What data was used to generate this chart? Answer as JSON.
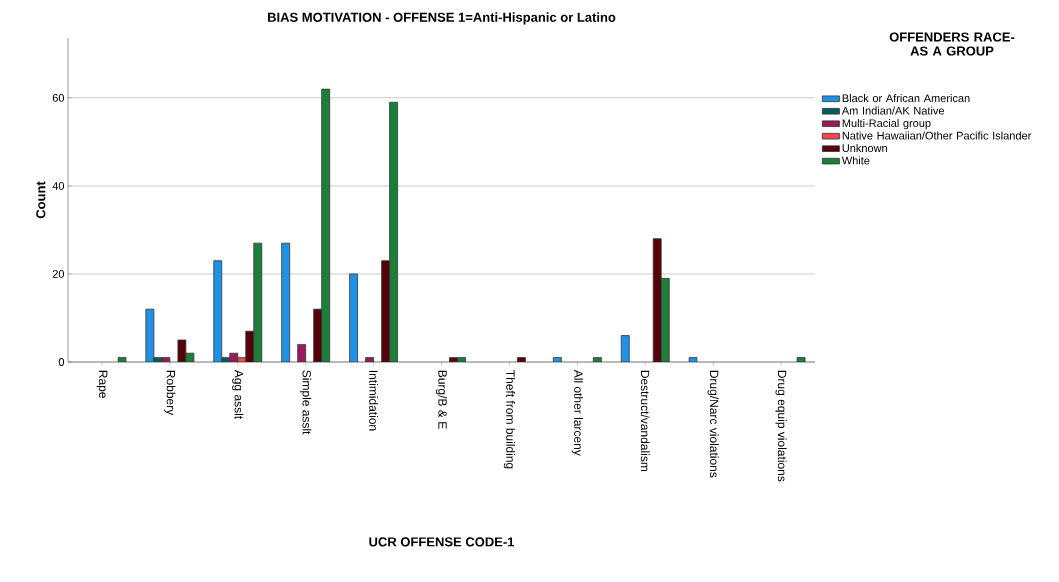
{
  "chart_data": {
    "type": "bar",
    "title": "BIAS MOTIVATION - OFFENSE 1=Anti-Hispanic or Latino",
    "xlabel": "UCR OFFENSE CODE-1",
    "ylabel": "Count",
    "legend_title": "OFFENDERS RACE-AS A GROUP",
    "categories": [
      "Rape",
      "Robbery",
      "Agg asslt",
      "Simple asslt",
      "Intimidation",
      "Burg/B & E",
      "Theft from building",
      "All other larceny",
      "Destruct/vandalism",
      "Drug/Narc violations",
      "Drug equip violations"
    ],
    "series": [
      {
        "name": "Black or African American",
        "color": "#1f92e6",
        "values": [
          null,
          12,
          23,
          27,
          20,
          null,
          null,
          1,
          6,
          1,
          null
        ]
      },
      {
        "name": "Am Indian/AK Native",
        "color": "#0b5a5a",
        "values": [
          null,
          1,
          1,
          null,
          null,
          null,
          null,
          null,
          null,
          null,
          null
        ]
      },
      {
        "name": "Multi-Racial group",
        "color": "#9c1a5c",
        "values": [
          null,
          1,
          2,
          4,
          1,
          null,
          null,
          null,
          null,
          null,
          null
        ]
      },
      {
        "name": "Native Hawaiian/Other Pacific Islander",
        "color": "#f5474f",
        "values": [
          null,
          null,
          1,
          null,
          null,
          null,
          null,
          null,
          null,
          null,
          null
        ]
      },
      {
        "name": "Unknown",
        "color": "#560009",
        "values": [
          null,
          5,
          7,
          12,
          23,
          1,
          1,
          null,
          28,
          null,
          null
        ]
      },
      {
        "name": "White",
        "color": "#1b7f3a",
        "values": [
          1,
          2,
          27,
          62,
          59,
          1,
          null,
          1,
          19,
          null,
          1
        ]
      }
    ],
    "ylim": [
      0,
      73.6
    ],
    "yticks": [
      0,
      20,
      40,
      60
    ],
    "grid": "y",
    "legend": "right"
  }
}
